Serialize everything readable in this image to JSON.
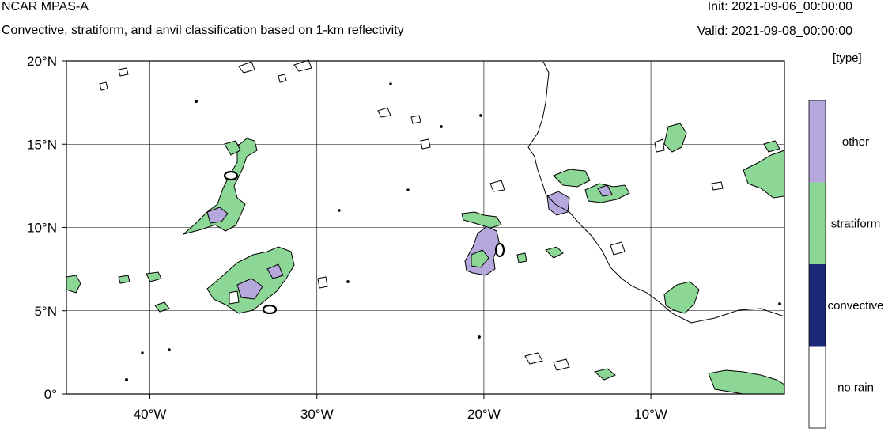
{
  "header": {
    "title": "NCAR MPAS-A",
    "subtitle": "Convective, stratiform, and anvil classification based on 1-km reflectivity",
    "init": "Init: 2021-09-06_00:00:00",
    "valid": "Valid: 2021-09-08_00:00:00"
  },
  "map": {
    "lon_range": [
      -45,
      -2
    ],
    "lat_range": [
      0,
      20
    ],
    "lon_ticks": [
      {
        "v": -40,
        "label": "40°W"
      },
      {
        "v": -30,
        "label": "30°W"
      },
      {
        "v": -20,
        "label": "20°W"
      },
      {
        "v": -10,
        "label": "10°W"
      }
    ],
    "lat_ticks": [
      {
        "v": 20,
        "label": "20°N"
      },
      {
        "v": 15,
        "label": "15°N"
      },
      {
        "v": 10,
        "label": "10°N"
      },
      {
        "v": 5,
        "label": "5°N"
      },
      {
        "v": 0,
        "label": "0°"
      }
    ],
    "grid": true
  },
  "legend": {
    "title": "[type]",
    "categories": [
      {
        "label": "other",
        "color": "#b4a8dc"
      },
      {
        "label": "stratiform",
        "color": "#8cd696"
      },
      {
        "label": "convective",
        "color": "#1a2877"
      },
      {
        "label": "no rain",
        "color": "#ffffff"
      }
    ]
  }
}
